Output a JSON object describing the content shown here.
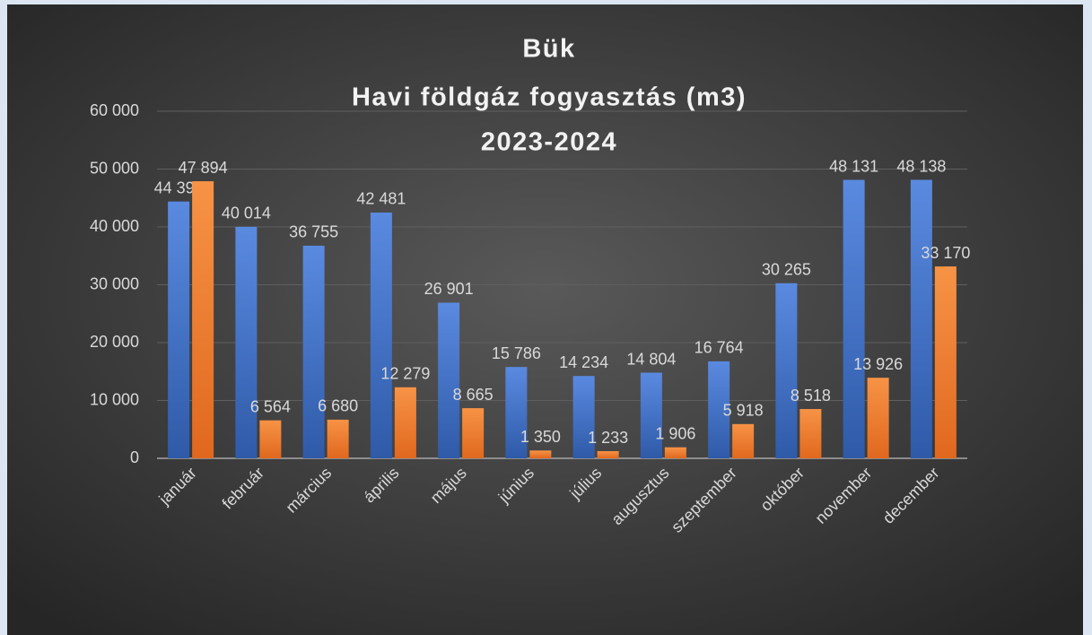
{
  "chart_data": {
    "type": "bar",
    "title": [
      "Bük",
      "Havi földgáz fogyasztás (m3)",
      "2023-2024"
    ],
    "categories": [
      "január",
      "február",
      "március",
      "április",
      "május",
      "június",
      "július",
      "augusztus",
      "szeptember",
      "október",
      "november",
      "december"
    ],
    "series": [
      {
        "color": "#4472c4",
        "values": [
          44392,
          40014,
          36755,
          42481,
          26901,
          15786,
          14234,
          14804,
          16764,
          30265,
          48131,
          48138
        ],
        "value_labels": [
          "44 392",
          "40 014",
          "36 755",
          "42 481",
          "26 901",
          "15 786",
          "14 234",
          "14 804",
          "16 764",
          "30 265",
          "48 131",
          "48 138"
        ]
      },
      {
        "color": "#ed7d31",
        "values": [
          47894,
          6564,
          6680,
          12279,
          8665,
          1350,
          1233,
          1906,
          5918,
          8518,
          13926,
          33170
        ],
        "value_labels": [
          "47 894",
          "6 564",
          "6 680",
          "12 279",
          "8 665",
          "1 350",
          "1 233",
          "1 906",
          "5 918",
          "8 518",
          "13 926",
          "33 170"
        ]
      }
    ],
    "ylim": [
      0,
      60000
    ],
    "yticks": [
      {
        "value": 0,
        "label": "0"
      },
      {
        "value": 10000,
        "label": "10 000"
      },
      {
        "value": 20000,
        "label": "20 000"
      },
      {
        "value": 30000,
        "label": "30 000"
      },
      {
        "value": 40000,
        "label": "40 000"
      },
      {
        "value": 50000,
        "label": "50 000"
      },
      {
        "value": 60000,
        "label": "60 000"
      }
    ],
    "grid": true
  }
}
